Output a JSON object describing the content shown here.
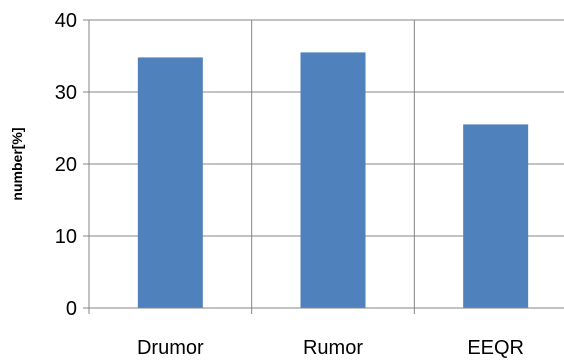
{
  "chart_data": {
    "type": "bar",
    "categories": [
      "Drumor",
      "Rumor",
      "EEQR"
    ],
    "values": [
      34.8,
      35.5,
      25.5
    ],
    "title": "",
    "xlabel": "",
    "ylabel": "number[%]",
    "ylim": [
      0,
      40
    ],
    "yticks": [
      "0",
      "10",
      "20",
      "30",
      "40"
    ],
    "grid": true,
    "legend": "none",
    "colors": {
      "bar": "#4f81bd",
      "grid": "#868686",
      "axis": "#868686"
    }
  }
}
